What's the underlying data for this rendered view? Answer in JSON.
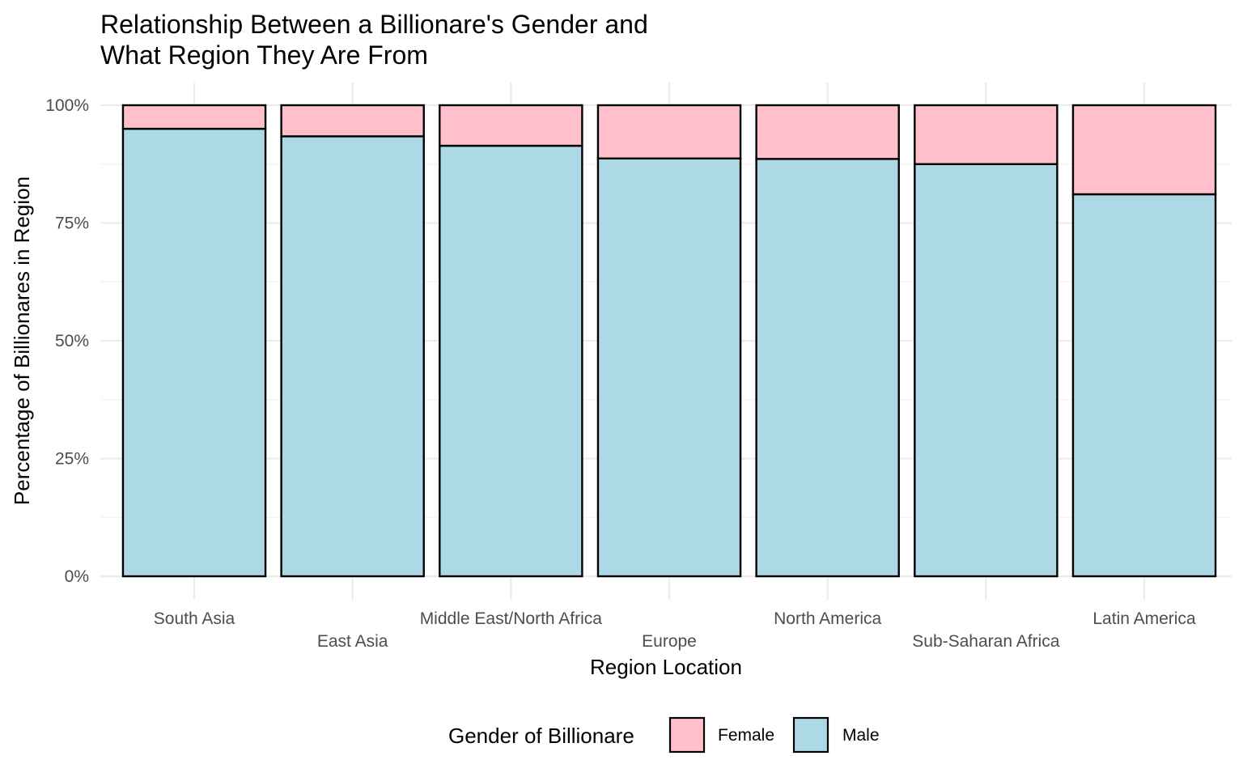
{
  "chart_data": {
    "type": "bar",
    "stacked": true,
    "normalized": true,
    "title_lines": [
      "Relationship Between a Billionare's Gender and",
      "What Region They Are From"
    ],
    "xlabel": "Region Location",
    "ylabel": "Percentage of Billionares in Region",
    "categories": [
      "South Asia",
      "East Asia",
      "Middle East/North Africa",
      "Europe",
      "North America",
      "Sub-Saharan Africa",
      "Latin America"
    ],
    "series": [
      {
        "name": "Male",
        "color": "#add8e6",
        "values": [
          95.0,
          93.4,
          91.4,
          88.7,
          88.6,
          87.5,
          81.1
        ]
      },
      {
        "name": "Female",
        "color": "#ffc0cb",
        "values": [
          5.0,
          6.6,
          8.6,
          11.3,
          11.4,
          12.5,
          18.9
        ]
      }
    ],
    "ylim": [
      0,
      100
    ],
    "yticks": [
      0,
      25,
      50,
      75,
      100
    ],
    "ytick_labels": [
      "0%",
      "25%",
      "50%",
      "75%",
      "100%"
    ],
    "grid": true,
    "legend": {
      "title": "Gender of Billionare",
      "position": "bottom",
      "entries": [
        {
          "label": "Female",
          "color": "#ffc0cb"
        },
        {
          "label": "Male",
          "color": "#add8e6"
        }
      ]
    }
  }
}
